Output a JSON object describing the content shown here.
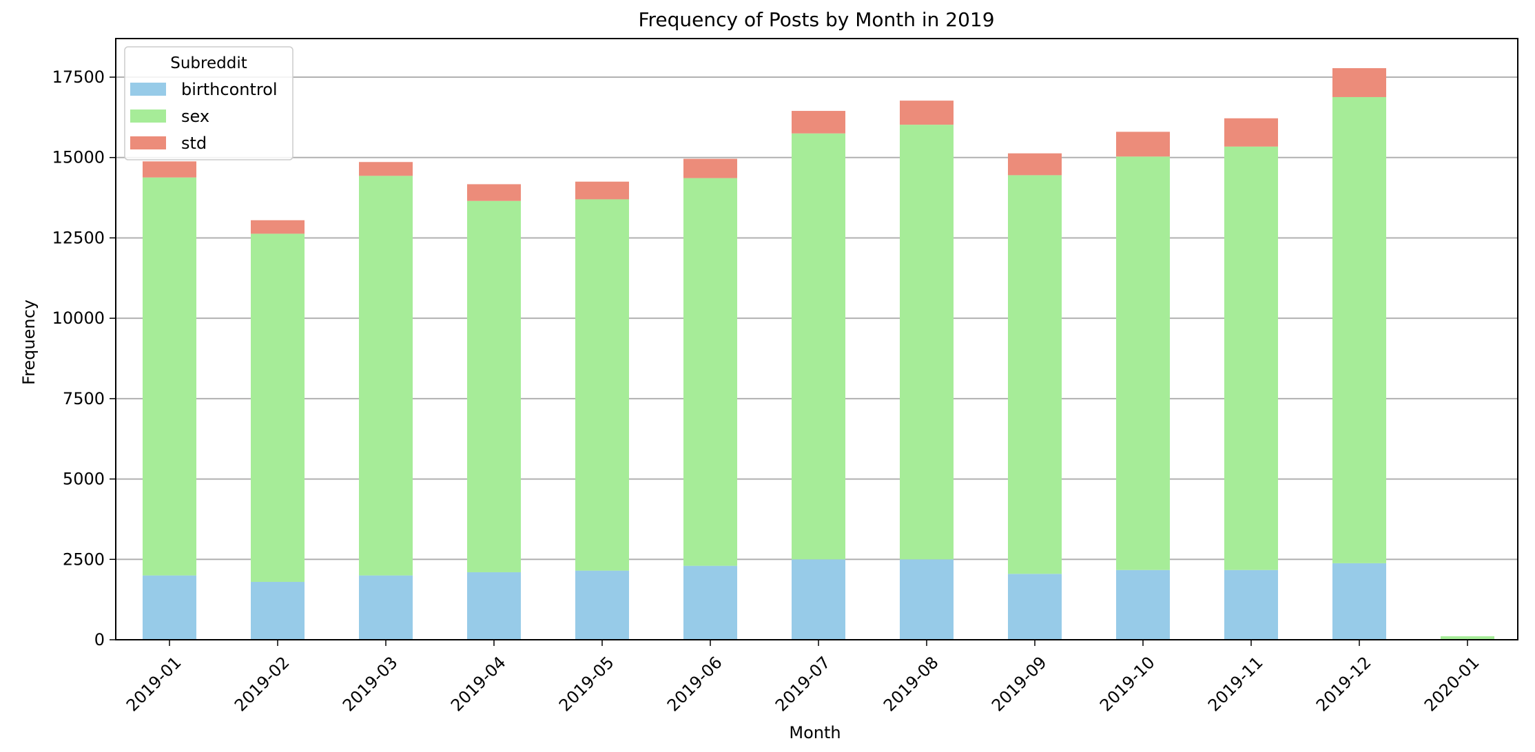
{
  "chart_data": {
    "type": "bar",
    "stacked": true,
    "title": "Frequency of Posts by Month in 2019",
    "xlabel": "Month",
    "ylabel": "Frequency",
    "categories": [
      "2019-01",
      "2019-02",
      "2019-03",
      "2019-04",
      "2019-05",
      "2019-06",
      "2019-07",
      "2019-08",
      "2019-09",
      "2019-10",
      "2019-11",
      "2019-12",
      "2020-01"
    ],
    "series": [
      {
        "name": "birthcontrol",
        "color": "#97cbe8",
        "values": [
          2000,
          1800,
          2000,
          2100,
          2150,
          2300,
          2500,
          2500,
          2050,
          2170,
          2170,
          2380,
          0
        ]
      },
      {
        "name": "sex",
        "color": "#a6ec98",
        "values": [
          12380,
          10830,
          12430,
          11550,
          11550,
          12060,
          13250,
          13520,
          12400,
          12860,
          13170,
          14500,
          110
        ]
      },
      {
        "name": "std",
        "color": "#ec8c7a",
        "values": [
          500,
          420,
          430,
          520,
          550,
          600,
          700,
          750,
          680,
          770,
          880,
          900,
          0
        ]
      }
    ],
    "ylim": [
      0,
      18700
    ],
    "yticks": [
      0,
      2500,
      5000,
      7500,
      10000,
      12500,
      15000,
      17500
    ],
    "ytick_labels": [
      "0",
      "2500",
      "5000",
      "7500",
      "10000",
      "12500",
      "15000",
      "17500"
    ],
    "grid": "horizontal",
    "legend": {
      "title": "Subreddit",
      "position": "top-left"
    }
  }
}
